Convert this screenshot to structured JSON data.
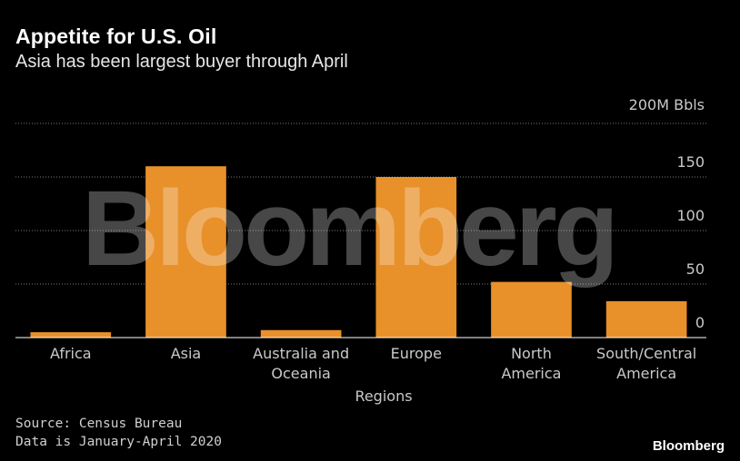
{
  "title": "Appetite for U.S. Oil",
  "subtitle": "Asia has been largest buyer through April",
  "source_lines": [
    "Source: Census Bureau",
    "Data is January-April 2020"
  ],
  "brand": "Bloomberg",
  "watermark": "Bloomberg",
  "colors": {
    "bar": "#E8902A",
    "grid": "#7a7a7a",
    "baseline": "#ffffff",
    "background": "#000000"
  },
  "chart_data": {
    "type": "bar",
    "categories": [
      [
        "Africa"
      ],
      [
        "Asia"
      ],
      [
        "Australia and",
        "Oceania"
      ],
      [
        "Europe"
      ],
      [
        "North",
        "America"
      ],
      [
        "South/Central",
        "America"
      ]
    ],
    "values": [
      5,
      160,
      7,
      150,
      52,
      34
    ],
    "ylim": [
      0,
      200
    ],
    "yticks": [
      0,
      50,
      100,
      150
    ],
    "ytick_labels": [
      "0",
      "50",
      "100",
      "150"
    ],
    "y_unit_label": "200M Bbls",
    "xlabel": "Regions",
    "ylabel": "",
    "grid": true,
    "grid_style": "dotted",
    "axis_position": "right"
  }
}
